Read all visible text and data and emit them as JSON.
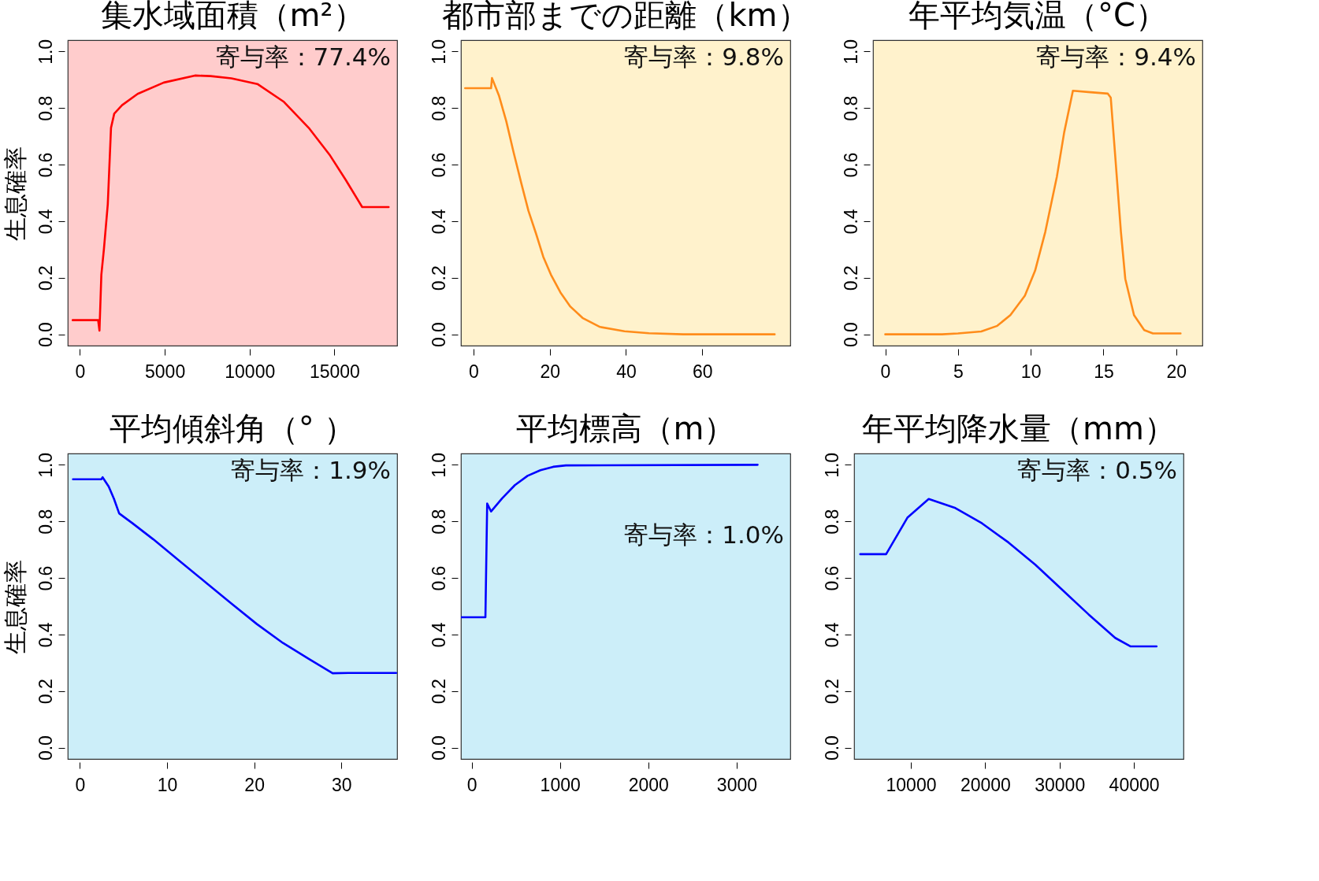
{
  "chart_data": [
    {
      "type": "line",
      "title": "集水域面積（m²）",
      "ylabel": "生息確率",
      "annotations": [
        "寄与率：77.4%"
      ],
      "xlim": [
        -720,
        18700
      ],
      "xticks": [
        0,
        5000,
        10000,
        15000
      ],
      "ylim": [
        -0.04,
        1.04
      ],
      "yticks": [
        {
          "value": 0,
          "label": "0.0"
        },
        {
          "value": 0.2,
          "label": "0.2"
        },
        {
          "value": 0.4,
          "label": "0.4"
        },
        {
          "value": 0.6,
          "label": "0.6"
        },
        {
          "value": 0.8,
          "label": "0.8"
        },
        {
          "value": 1,
          "label": "1.0"
        }
      ],
      "series": [
        {
          "color": "#ff0000",
          "x": [
            -430,
            1070,
            1150,
            1260,
            1410,
            1640,
            1830,
            2020,
            2480,
            3400,
            4940,
            6780,
            7700,
            8930,
            10460,
            12000,
            13530,
            14750,
            15670,
            16640,
            18200
          ],
          "values": [
            0.05,
            0.05,
            0.013,
            0.21,
            0.3,
            0.46,
            0.73,
            0.78,
            0.81,
            0.85,
            0.89,
            0.915,
            0.913,
            0.905,
            0.885,
            0.823,
            0.727,
            0.632,
            0.546,
            0.45,
            0.45
          ]
        }
      ]
    },
    {
      "type": "line",
      "title": "都市部までの距離（km）",
      "annotations": [
        "寄与率：9.8%"
      ],
      "xlim": [
        -3.3,
        83.1
      ],
      "xticks": [
        0,
        20,
        40,
        60
      ],
      "ylim": [
        -0.04,
        1.04
      ],
      "yticks": [
        {
          "value": 0,
          "label": "0.0"
        },
        {
          "value": 0.2,
          "label": "0.2"
        },
        {
          "value": 0.4,
          "label": "0.4"
        },
        {
          "value": 0.6,
          "label": "0.6"
        },
        {
          "value": 0.8,
          "label": "0.8"
        },
        {
          "value": 1,
          "label": "1.0"
        }
      ],
      "series": [
        {
          "color": "#ff8c1a",
          "x": [
            -2.2,
            4.6,
            4.85,
            6.7,
            8.6,
            10.5,
            12.5,
            14.4,
            16.4,
            18.3,
            20.3,
            22.8,
            25.4,
            28.6,
            33.2,
            39.6,
            46,
            55,
            79
          ],
          "values": [
            0.87,
            0.87,
            0.906,
            0.843,
            0.753,
            0.644,
            0.536,
            0.437,
            0.356,
            0.274,
            0.211,
            0.148,
            0.098,
            0.058,
            0.026,
            0.011,
            0.004,
            0,
            0
          ]
        }
      ]
    },
    {
      "type": "line",
      "title": "年平均気温（°C）",
      "annotations": [
        "寄与率：9.4%"
      ],
      "xlim": [
        -0.84,
        21.8
      ],
      "xticks": [
        0,
        5,
        10,
        15,
        20
      ],
      "ylim": [
        -0.04,
        1.04
      ],
      "yticks": [
        {
          "value": 0,
          "label": "0.0"
        },
        {
          "value": 0.2,
          "label": "0.2"
        },
        {
          "value": 0.4,
          "label": "0.4"
        },
        {
          "value": 0.6,
          "label": "0.6"
        },
        {
          "value": 0.8,
          "label": "0.8"
        },
        {
          "value": 1,
          "label": "1.0"
        }
      ],
      "series": [
        {
          "color": "#ff8c1a",
          "x": [
            0,
            3.9,
            5,
            6.6,
            7.7,
            8.6,
            9.6,
            10.3,
            11,
            11.8,
            12.3,
            12.9,
            14.1,
            15.3,
            15.5,
            15.8,
            16.2,
            16.5,
            17.1,
            17.8,
            18.4,
            20.3
          ],
          "values": [
            0,
            0,
            0.003,
            0.01,
            0.03,
            0.068,
            0.137,
            0.225,
            0.362,
            0.558,
            0.714,
            0.861,
            0.856,
            0.851,
            0.837,
            0.636,
            0.362,
            0.196,
            0.068,
            0.015,
            0.003,
            0.003
          ]
        }
      ]
    },
    {
      "type": "line",
      "title": "平均傾斜角（°  ）",
      "ylabel": "生息確率",
      "annotations": [
        "寄与率：1.9%"
      ],
      "xlim": [
        -1.4,
        36.4
      ],
      "xticks": [
        0,
        10,
        20,
        30
      ],
      "ylim": [
        -0.04,
        1.04
      ],
      "yticks": [
        {
          "value": 0,
          "label": "0.0"
        },
        {
          "value": 0.2,
          "label": "0.2"
        },
        {
          "value": 0.4,
          "label": "0.4"
        },
        {
          "value": 0.6,
          "label": "0.6"
        },
        {
          "value": 0.8,
          "label": "0.8"
        },
        {
          "value": 1,
          "label": "1.0"
        }
      ],
      "series": [
        {
          "color": "#0000ff",
          "x": [
            -0.8,
            2.45,
            2.6,
            3.3,
            3.9,
            4.5,
            6,
            8.4,
            11.4,
            14.4,
            17.4,
            20.3,
            23.3,
            26.3,
            29,
            30.8,
            36.3
          ],
          "values": [
            0.949,
            0.949,
            0.956,
            0.923,
            0.88,
            0.828,
            0.794,
            0.737,
            0.661,
            0.585,
            0.509,
            0.437,
            0.37,
            0.313,
            0.263,
            0.264,
            0.264
          ]
        }
      ]
    },
    {
      "type": "line",
      "title": "平均標高（m）",
      "annotations": [
        "寄与率：1.0%"
      ],
      "xlim": [
        -121,
        3607
      ],
      "xticks": [
        0,
        1000,
        2000,
        3000
      ],
      "ylim": [
        -0.04,
        1.04
      ],
      "yticks": [
        {
          "value": 0,
          "label": "0.0"
        },
        {
          "value": 0.2,
          "label": "0.2"
        },
        {
          "value": 0.4,
          "label": "0.4"
        },
        {
          "value": 0.6,
          "label": "0.6"
        },
        {
          "value": 0.8,
          "label": "0.8"
        },
        {
          "value": 1,
          "label": "1.0"
        }
      ],
      "series": [
        {
          "color": "#0000ff",
          "x": [
            -121,
            156,
            176,
            220,
            344,
            489,
            633,
            778,
            923,
            1067,
            3237
          ],
          "values": [
            0.461,
            0.461,
            0.863,
            0.835,
            0.881,
            0.928,
            0.961,
            0.981,
            0.993,
            0.998,
            1.0
          ]
        }
      ]
    },
    {
      "type": "line",
      "title": "年平均降水量（mm）",
      "annotations": [
        "寄与率：0.5%"
      ],
      "xlim": [
        2366,
        46670
      ],
      "xticks": [
        10000,
        20000,
        30000,
        40000
      ],
      "ylim": [
        -0.04,
        1.04
      ],
      "yticks": [
        {
          "value": 0,
          "label": "0.0"
        },
        {
          "value": 0.2,
          "label": "0.2"
        },
        {
          "value": 0.4,
          "label": "0.4"
        },
        {
          "value": 0.6,
          "label": "0.6"
        },
        {
          "value": 0.8,
          "label": "0.8"
        },
        {
          "value": 1,
          "label": "1.0"
        }
      ],
      "series": [
        {
          "color": "#0000ff",
          "x": [
            3190,
            6670,
            9530,
            12400,
            15990,
            19570,
            23150,
            26740,
            30320,
            33910,
            37490,
            39570,
            43050
          ],
          "values": [
            0.684,
            0.684,
            0.813,
            0.879,
            0.847,
            0.793,
            0.725,
            0.647,
            0.559,
            0.471,
            0.388,
            0.358,
            0.358
          ]
        }
      ]
    }
  ]
}
